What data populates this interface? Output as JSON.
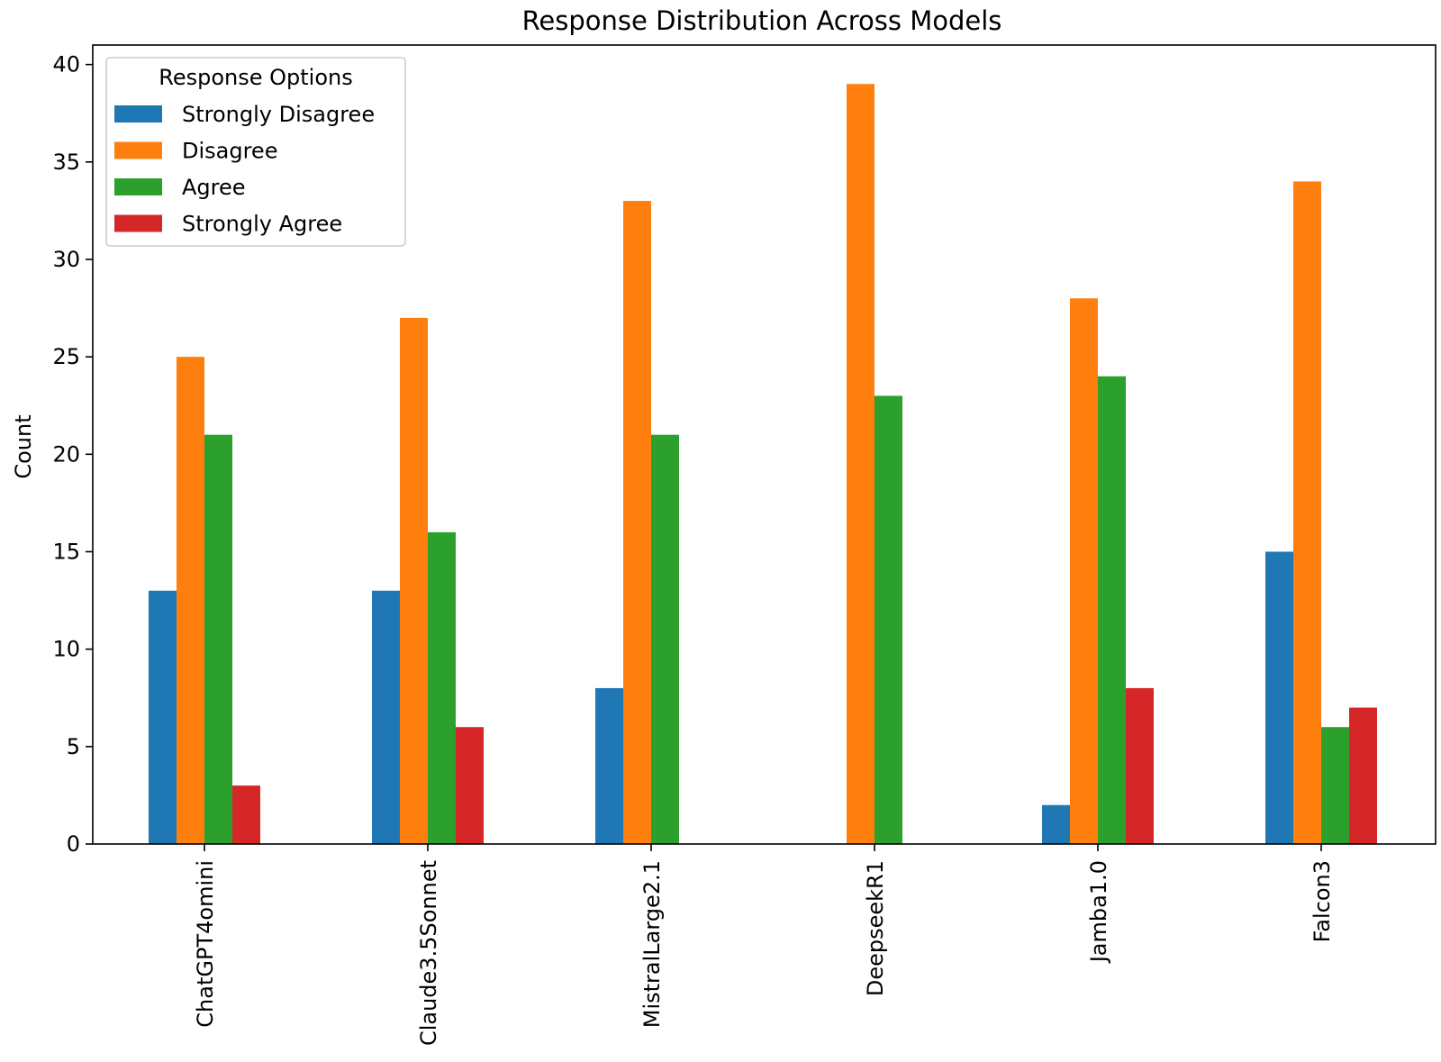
{
  "chart_data": {
    "type": "bar",
    "title": "Response Distribution Across Models",
    "xlabel": "",
    "ylabel": "Count",
    "categories": [
      "ChatGPT4omini",
      "Claude3.5Sonnet",
      "MistralLarge2.1",
      "DeepseekR1",
      "Jamba1.0",
      "Falcon3"
    ],
    "series": [
      {
        "name": "Strongly Disagree",
        "color": "#1f77b4",
        "values": [
          13,
          13,
          8,
          0,
          2,
          15
        ]
      },
      {
        "name": "Disagree",
        "color": "#ff7f0e",
        "values": [
          25,
          27,
          33,
          39,
          28,
          34
        ]
      },
      {
        "name": "Agree",
        "color": "#2ca02c",
        "values": [
          21,
          16,
          21,
          23,
          24,
          6
        ]
      },
      {
        "name": "Strongly Agree",
        "color": "#d62728",
        "values": [
          3,
          6,
          0,
          0,
          8,
          7
        ]
      }
    ],
    "ylim": [
      0,
      41
    ],
    "yticks": [
      0,
      5,
      10,
      15,
      20,
      25,
      30,
      35,
      40
    ],
    "grid": false,
    "legend": {
      "title": "Response Options",
      "position": "upper-left"
    }
  }
}
